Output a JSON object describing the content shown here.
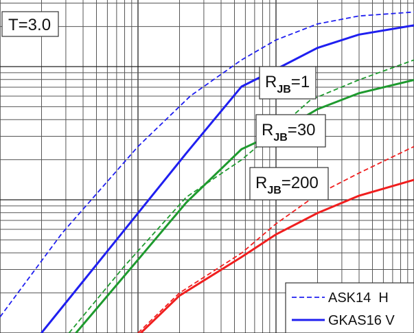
{
  "chart_data": {
    "type": "line",
    "title_box": "T=3.0",
    "xscale": "log",
    "yscale": "log",
    "grid": true,
    "legend_placement": "bottom-right",
    "legend": [
      {
        "label": "ASK14  H",
        "style": "dashed",
        "color": "#1f1ff0"
      },
      {
        "label": "GKAS16 V",
        "style": "solid",
        "color": "#1f1ff0"
      }
    ],
    "annotations": [
      {
        "base": "R",
        "sub": "JB",
        "suffix": "=1"
      },
      {
        "base": "R",
        "sub": "JB",
        "suffix": "=30"
      },
      {
        "base": "R",
        "sub": "JB",
        "suffix": "=200"
      }
    ],
    "colors": {
      "rjb1": "#1f1ff0",
      "rjb30": "#1e9a2e",
      "rjb200": "#f01e1e"
    },
    "series": [
      {
        "group": "rjb1",
        "model": "ASK14 H",
        "style": "dashed",
        "x": [
          0,
          0.45,
          1.0,
          1.38,
          1.75,
          2.0,
          2.3,
          2.6,
          3.0
        ],
        "y": [
          0.12,
          0.75,
          1.4,
          1.78,
          2.05,
          2.2,
          2.32,
          2.38,
          2.41
        ]
      },
      {
        "group": "rjb1",
        "model": "GKAS16 V",
        "style": "solid",
        "x": [
          0.3,
          0.65,
          1.0,
          1.35,
          1.75,
          2.0,
          2.3,
          2.6,
          3.0
        ],
        "y": [
          0.0,
          0.45,
          0.9,
          1.35,
          1.85,
          1.98,
          2.14,
          2.24,
          2.31
        ]
      },
      {
        "group": "rjb30",
        "model": "ASK14 H",
        "style": "dashed",
        "x": [
          0.5,
          0.9,
          1.35,
          1.75,
          2.0,
          2.25,
          2.6,
          3.0
        ],
        "y": [
          0.0,
          0.5,
          1.02,
          1.3,
          1.52,
          1.75,
          1.9,
          2.05
        ]
      },
      {
        "group": "rjb30",
        "model": "GKAS16 V",
        "style": "solid",
        "x": [
          0.55,
          1.0,
          1.35,
          1.75,
          2.0,
          2.3,
          2.6,
          3.0
        ],
        "y": [
          0.0,
          0.55,
          0.98,
          1.38,
          1.5,
          1.68,
          1.8,
          1.9
        ]
      },
      {
        "group": "rjb200",
        "model": "ASK14 H",
        "style": "dashed",
        "x": [
          1.0,
          1.3,
          1.75,
          2.0,
          2.3,
          2.6,
          3.0
        ],
        "y": [
          0.0,
          0.3,
          0.6,
          0.82,
          1.04,
          1.2,
          1.4
        ]
      },
      {
        "group": "rjb200",
        "model": "GKAS16 V",
        "style": "solid",
        "x": [
          1.02,
          1.3,
          1.75,
          2.0,
          2.3,
          2.6,
          3.0
        ],
        "y": [
          0.0,
          0.28,
          0.57,
          0.74,
          0.9,
          1.03,
          1.15
        ]
      }
    ],
    "xlim": [
      0,
      3
    ],
    "ylim": [
      0,
      2.5
    ]
  }
}
